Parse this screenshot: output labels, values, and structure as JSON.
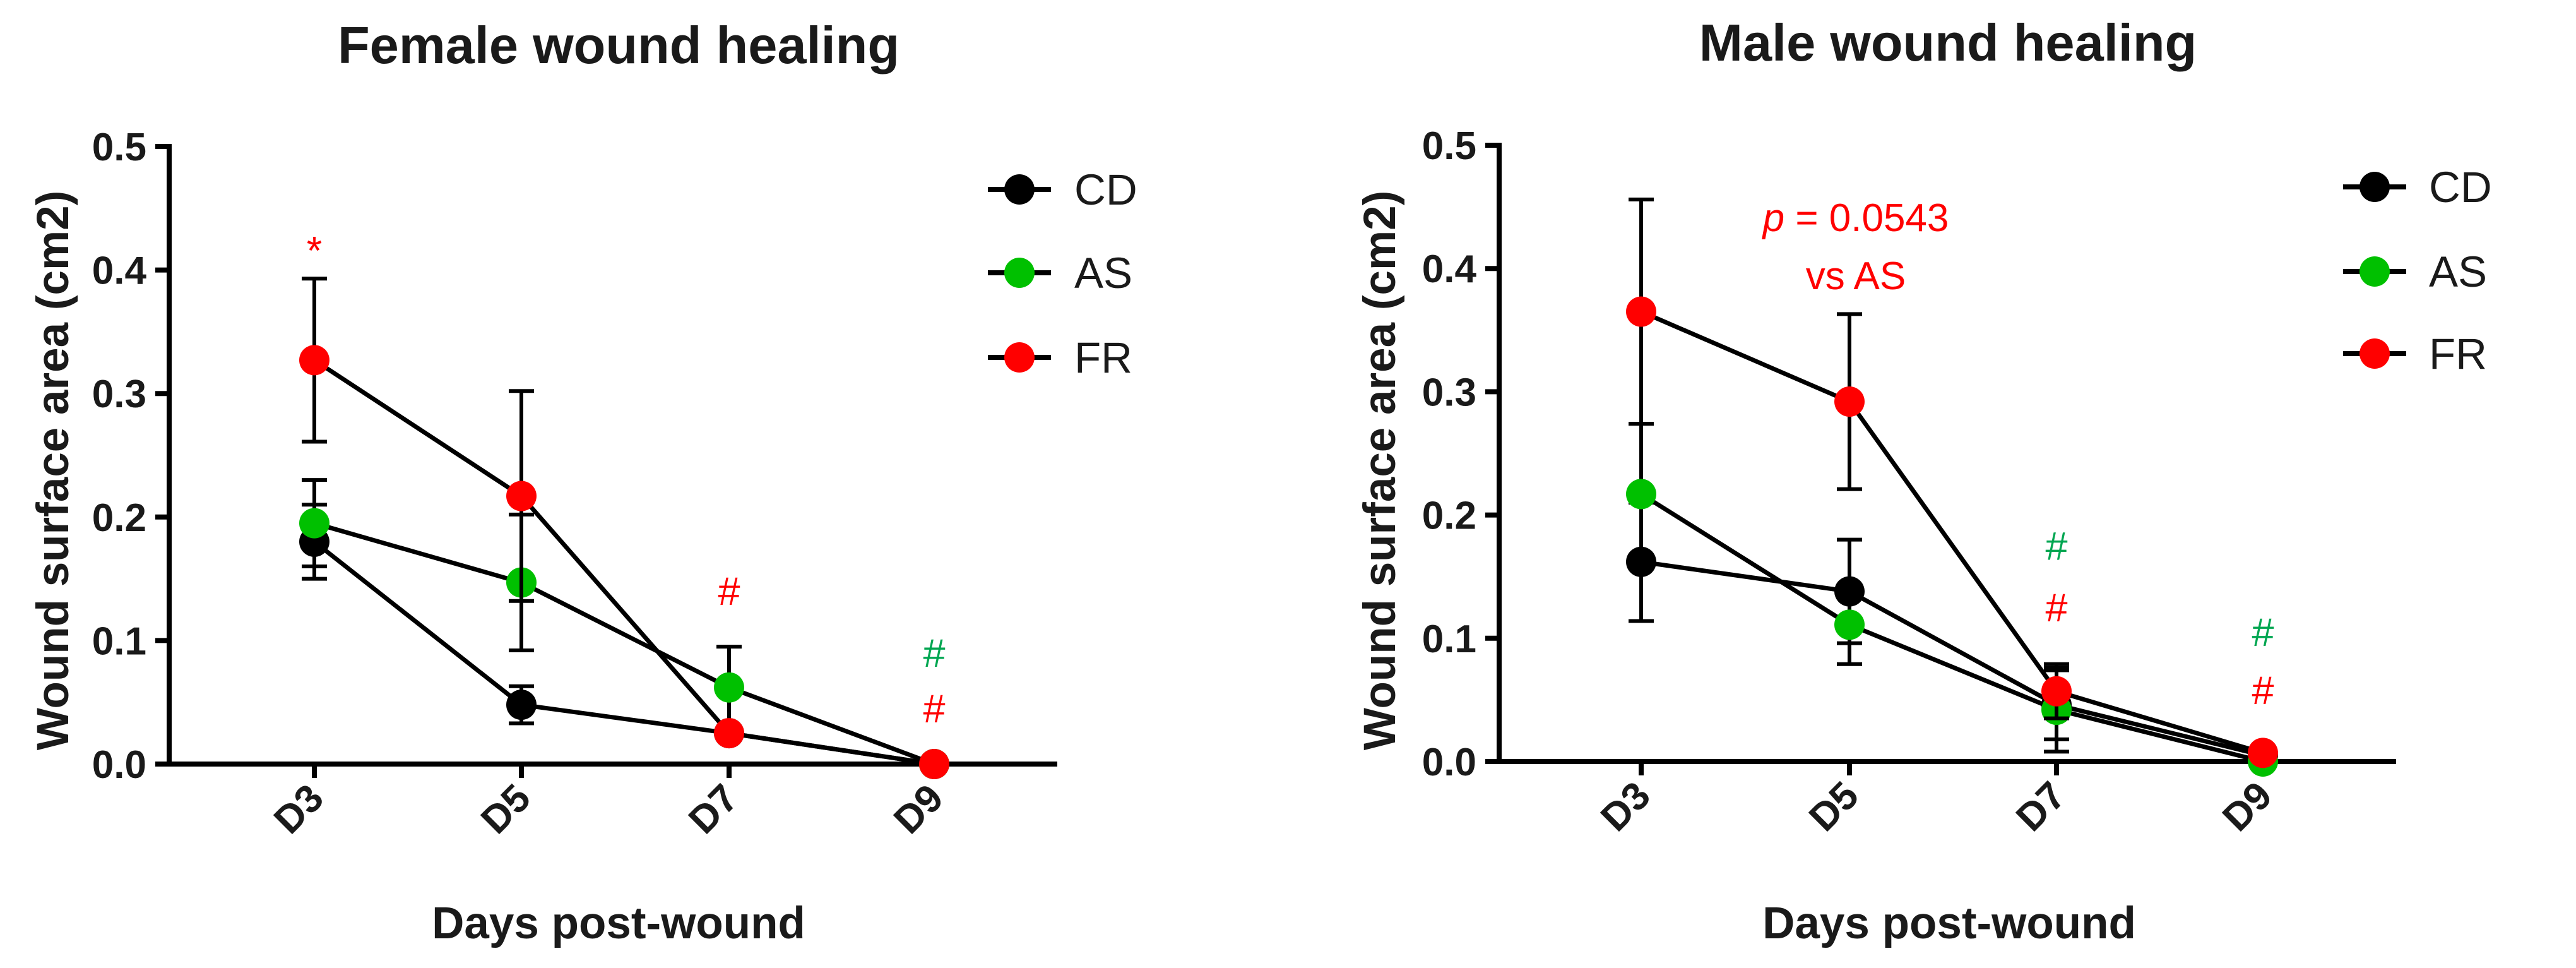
{
  "colors": {
    "CD": "#000000",
    "AS": "#00c000",
    "FR": "#ff0000",
    "axis": "#000000",
    "hash_green": "#00a651",
    "hash_red": "#ff0000"
  },
  "chart_data": [
    {
      "type": "line",
      "title": "Female wound healing",
      "xlabel": "Days post-wound",
      "ylabel": "Wound surface area (cm2)",
      "ylim": [
        0,
        0.5
      ],
      "yticks": [
        "0.0",
        "0.1",
        "0.2",
        "0.3",
        "0.4",
        "0.5"
      ],
      "categories": [
        "D3",
        "D5",
        "D7",
        "D9"
      ],
      "legend": [
        "CD",
        "AS",
        "FR"
      ],
      "series": [
        {
          "name": "CD",
          "values": [
            0.18,
            0.048,
            0.025,
            0.0
          ],
          "errors": [
            0.03,
            0.015,
            0.0,
            0.0
          ]
        },
        {
          "name": "AS",
          "values": [
            0.195,
            0.147,
            0.062,
            0.0
          ],
          "errors": [
            0.035,
            0.055,
            0.033,
            0.0
          ]
        },
        {
          "name": "FR",
          "values": [
            0.327,
            0.217,
            0.025,
            0.0
          ],
          "errors": [
            0.066,
            0.085,
            0.0,
            0.0
          ]
        }
      ],
      "annotations": [
        {
          "text": "*",
          "category": "D3",
          "y": 0.425,
          "color": "red",
          "kind": "star"
        },
        {
          "text": "#",
          "category": "D7",
          "y": 0.14,
          "color": "red",
          "kind": "hash"
        },
        {
          "text": "#",
          "category": "D9",
          "y": 0.09,
          "color": "green",
          "kind": "hash"
        },
        {
          "text": "#",
          "category": "D9",
          "y": 0.045,
          "color": "red",
          "kind": "hash"
        }
      ]
    },
    {
      "type": "line",
      "title": "Male wound healing",
      "xlabel": "Days post-wound",
      "ylabel": "Wound surface area (cm2)",
      "ylim": [
        0,
        0.5
      ],
      "yticks": [
        "0.0",
        "0.1",
        "0.2",
        "0.3",
        "0.4",
        "0.5"
      ],
      "categories": [
        "D3",
        "D5",
        "D7",
        "D9"
      ],
      "legend": [
        "CD",
        "AS",
        "FR"
      ],
      "series": [
        {
          "name": "CD",
          "values": [
            0.162,
            0.138,
            0.046,
            0.005
          ],
          "errors": [
            0.048,
            0.042,
            0.028,
            0.0
          ]
        },
        {
          "name": "AS",
          "values": [
            0.217,
            0.111,
            0.042,
            0.0
          ],
          "errors": [
            0.057,
            0.032,
            0.034,
            0.0
          ]
        },
        {
          "name": "FR",
          "values": [
            0.365,
            0.292,
            0.057,
            0.007
          ],
          "errors": [
            0.091,
            0.071,
            0.022,
            0.0
          ]
        }
      ],
      "annotations": [
        {
          "text": "#",
          "category": "D7",
          "y": 0.175,
          "color": "green",
          "kind": "hash"
        },
        {
          "text": "#",
          "category": "D7",
          "y": 0.125,
          "color": "red",
          "kind": "hash"
        },
        {
          "text": "#",
          "category": "D9",
          "y": 0.105,
          "color": "green",
          "kind": "hash"
        },
        {
          "text": "#",
          "category": "D9",
          "y": 0.058,
          "color": "red",
          "kind": "hash"
        }
      ],
      "pvalue": {
        "p": "p",
        "rest": " = 0.0543",
        "line2": "vs AS"
      }
    }
  ]
}
